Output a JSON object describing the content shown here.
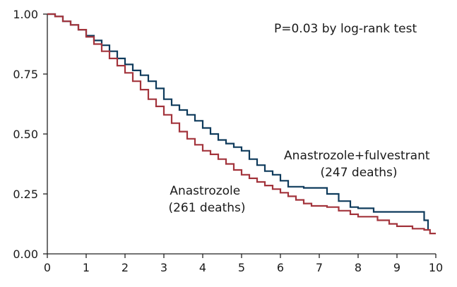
{
  "chart_data": {
    "type": "line",
    "title": "",
    "xlabel": "",
    "ylabel": "",
    "xlim": [
      0,
      10
    ],
    "ylim": [
      0,
      1
    ],
    "x_ticks": [
      "0",
      "1",
      "2",
      "3",
      "4",
      "5",
      "6",
      "7",
      "8",
      "9",
      "10"
    ],
    "y_ticks": [
      "0.00",
      "0.25",
      "0.50",
      "0.75",
      "1.00"
    ],
    "grid": false,
    "step": true,
    "annotation": "P=0.03 by log-rank test",
    "series": [
      {
        "label_lines": [
          "Anastrozole+fulvestrant",
          "(247 deaths)"
        ],
        "color": "#0f3b5c",
        "points": [
          [
            0,
            1.0
          ],
          [
            0.2,
            0.99
          ],
          [
            0.4,
            0.97
          ],
          [
            0.6,
            0.955
          ],
          [
            0.8,
            0.935
          ],
          [
            1.0,
            0.91
          ],
          [
            1.2,
            0.89
          ],
          [
            1.4,
            0.87
          ],
          [
            1.6,
            0.845
          ],
          [
            1.8,
            0.815
          ],
          [
            2.0,
            0.79
          ],
          [
            2.2,
            0.765
          ],
          [
            2.4,
            0.745
          ],
          [
            2.6,
            0.72
          ],
          [
            2.8,
            0.69
          ],
          [
            3.0,
            0.645
          ],
          [
            3.2,
            0.62
          ],
          [
            3.4,
            0.6
          ],
          [
            3.6,
            0.58
          ],
          [
            3.8,
            0.555
          ],
          [
            4.0,
            0.525
          ],
          [
            4.2,
            0.5
          ],
          [
            4.4,
            0.475
          ],
          [
            4.6,
            0.46
          ],
          [
            4.8,
            0.445
          ],
          [
            5.0,
            0.43
          ],
          [
            5.2,
            0.395
          ],
          [
            5.4,
            0.37
          ],
          [
            5.6,
            0.345
          ],
          [
            5.8,
            0.33
          ],
          [
            6.0,
            0.305
          ],
          [
            6.2,
            0.28
          ],
          [
            6.6,
            0.275
          ],
          [
            7.0,
            0.275
          ],
          [
            7.2,
            0.25
          ],
          [
            7.5,
            0.22
          ],
          [
            7.8,
            0.195
          ],
          [
            8.0,
            0.19
          ],
          [
            8.4,
            0.175
          ],
          [
            9.0,
            0.175
          ],
          [
            9.6,
            0.175
          ],
          [
            9.7,
            0.14
          ],
          [
            9.8,
            0.1
          ]
        ]
      },
      {
        "label_lines": [
          "Anastrozole",
          "(261 deaths)"
        ],
        "color": "#a3343c",
        "points": [
          [
            0,
            1.0
          ],
          [
            0.2,
            0.99
          ],
          [
            0.4,
            0.97
          ],
          [
            0.6,
            0.955
          ],
          [
            0.8,
            0.935
          ],
          [
            1.0,
            0.905
          ],
          [
            1.2,
            0.875
          ],
          [
            1.4,
            0.845
          ],
          [
            1.6,
            0.815
          ],
          [
            1.8,
            0.785
          ],
          [
            2.0,
            0.755
          ],
          [
            2.2,
            0.72
          ],
          [
            2.4,
            0.685
          ],
          [
            2.6,
            0.645
          ],
          [
            2.8,
            0.615
          ],
          [
            3.0,
            0.58
          ],
          [
            3.2,
            0.545
          ],
          [
            3.4,
            0.51
          ],
          [
            3.6,
            0.48
          ],
          [
            3.8,
            0.455
          ],
          [
            4.0,
            0.43
          ],
          [
            4.2,
            0.415
          ],
          [
            4.4,
            0.395
          ],
          [
            4.6,
            0.375
          ],
          [
            4.8,
            0.35
          ],
          [
            5.0,
            0.33
          ],
          [
            5.2,
            0.315
          ],
          [
            5.4,
            0.3
          ],
          [
            5.6,
            0.285
          ],
          [
            5.8,
            0.27
          ],
          [
            6.0,
            0.255
          ],
          [
            6.2,
            0.24
          ],
          [
            6.4,
            0.225
          ],
          [
            6.6,
            0.21
          ],
          [
            6.8,
            0.2
          ],
          [
            7.2,
            0.195
          ],
          [
            7.5,
            0.18
          ],
          [
            7.8,
            0.165
          ],
          [
            8.0,
            0.155
          ],
          [
            8.5,
            0.14
          ],
          [
            8.8,
            0.125
          ],
          [
            9.0,
            0.115
          ],
          [
            9.4,
            0.105
          ],
          [
            9.7,
            0.1
          ],
          [
            9.85,
            0.085
          ],
          [
            10.0,
            0.085
          ]
        ]
      }
    ]
  }
}
